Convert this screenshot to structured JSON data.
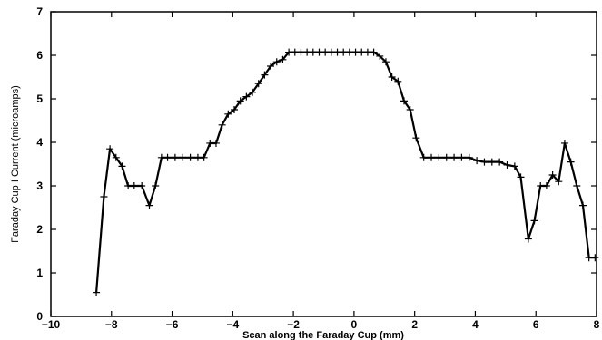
{
  "chart_data": {
    "type": "line",
    "title": "",
    "xlabel": "Scan along the Faraday Cup (mm)",
    "ylabel": "Faraday Cup I Current (microamps)",
    "xlim": [
      -10,
      8
    ],
    "ylim": [
      0,
      7
    ],
    "xticks": [
      -10,
      -8,
      -6,
      -4,
      -2,
      0,
      2,
      4,
      6,
      8
    ],
    "yticks": [
      0,
      1,
      2,
      3,
      4,
      5,
      6,
      7
    ],
    "grid": false,
    "marker": "+",
    "line_color": "#000000",
    "series": [
      {
        "x": [
          -8.5,
          -8.25,
          -8.05,
          -7.85,
          -7.65,
          -7.45,
          -7.25,
          -7.0,
          -6.75,
          -6.55,
          -6.35,
          -6.15,
          -5.9,
          -5.65,
          -5.4,
          -5.15,
          -4.95,
          -4.75,
          -4.55,
          -4.35,
          -4.15,
          -3.95,
          -3.75,
          -3.55,
          -3.35,
          -3.15,
          -2.95,
          -2.75,
          -2.55,
          -2.35,
          -2.15,
          -1.95,
          -1.75,
          -1.55,
          -1.35,
          -1.15,
          -0.95,
          -0.75,
          -0.55,
          -0.35,
          -0.15,
          0.05,
          0.25,
          0.45,
          0.65,
          0.85,
          1.05,
          1.25,
          1.45,
          1.65,
          1.85,
          2.05,
          2.3,
          2.55,
          2.8,
          3.05,
          3.3,
          3.55,
          3.8,
          4.05,
          4.3,
          4.55,
          4.8,
          5.05,
          5.3,
          5.5,
          5.75,
          5.95,
          6.15,
          6.35,
          6.55,
          6.75,
          6.95,
          7.15,
          7.35,
          7.55,
          7.75,
          7.95
        ],
        "y": [
          0.55,
          2.75,
          3.85,
          3.65,
          3.45,
          3.0,
          3.0,
          3.0,
          2.55,
          3.0,
          3.65,
          3.65,
          3.65,
          3.65,
          3.65,
          3.65,
          3.65,
          3.98,
          3.98,
          4.4,
          4.65,
          4.75,
          4.95,
          5.05,
          5.15,
          5.35,
          5.55,
          5.75,
          5.85,
          5.9,
          6.07,
          6.07,
          6.07,
          6.07,
          6.07,
          6.07,
          6.07,
          6.07,
          6.07,
          6.07,
          6.07,
          6.07,
          6.07,
          6.07,
          6.07,
          5.98,
          5.85,
          5.5,
          5.4,
          4.95,
          4.75,
          4.1,
          3.65,
          3.65,
          3.65,
          3.65,
          3.65,
          3.65,
          3.65,
          3.58,
          3.55,
          3.55,
          3.55,
          3.48,
          3.45,
          3.2,
          1.78,
          2.2,
          3.0,
          3.0,
          3.25,
          3.1,
          3.98,
          3.55,
          3.0,
          2.55,
          1.35,
          1.35
        ]
      }
    ]
  }
}
